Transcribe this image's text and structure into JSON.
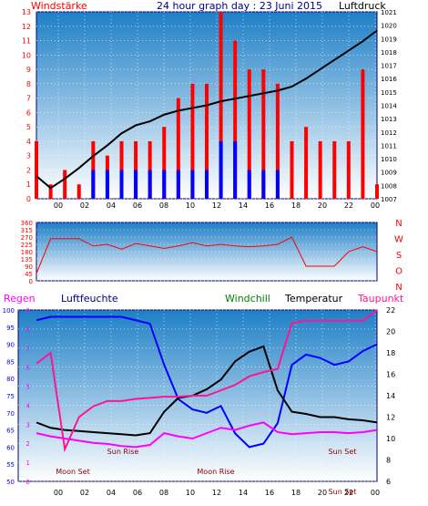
{
  "header": {
    "left_label": "Windstärke",
    "title": "24 hour graph day : 23 Juni 2015",
    "right_label": "Luftdruck"
  },
  "legend2": {
    "regen": "Regen",
    "luftfeuchte": "Luftfeuchte",
    "windchill": "Windchill",
    "temperatur": "Temperatur",
    "taupunkt": "Taupunkt"
  },
  "colors": {
    "red": "#ff0000",
    "blue": "#0000ff",
    "black": "#000000",
    "green": "#008000",
    "magenta": "#ff00ff",
    "hotpink": "#ff1493",
    "navy": "#000080"
  },
  "chart_data": [
    {
      "type": "bar",
      "title": "24 hour graph day : 23 Juni 2015",
      "ylabel_left": "Windstärke",
      "ylabel_right": "Luftdruck",
      "ylim_left": [
        0,
        13
      ],
      "ylim_right": [
        1007,
        1021
      ],
      "x_ticks": [
        "00",
        "02",
        "04",
        "06",
        "08",
        "10",
        "12",
        "14",
        "16",
        "18",
        "20",
        "22",
        "00"
      ],
      "y_ticks_left": [
        0,
        1,
        2,
        3,
        4,
        5,
        6,
        7,
        8,
        9,
        10,
        11,
        12,
        13
      ],
      "y_ticks_right": [
        1007,
        1008,
        1009,
        1010,
        1011,
        1012,
        1013,
        1014,
        1015,
        1016,
        1017,
        1018,
        1019,
        1020,
        1021
      ],
      "series": [
        {
          "type": "line",
          "color": "#000000",
          "axis": "right",
          "x": [
            0,
            1,
            2,
            3,
            4,
            5,
            6,
            7,
            8,
            9,
            10,
            11,
            12,
            13,
            14,
            15,
            16,
            17,
            18,
            19,
            20,
            21,
            22,
            23,
            24
          ],
          "y": [
            1008.7,
            1007.8,
            1008.5,
            1009.3,
            1010.2,
            1011.0,
            1011.9,
            1012.5,
            1012.8,
            1013.3,
            1013.6,
            1013.8,
            1014.0,
            1014.3,
            1014.5,
            1014.7,
            1014.9,
            1015.1,
            1015.4,
            1016.0,
            1016.7,
            1017.4,
            1018.1,
            1018.8,
            1019.6
          ]
        },
        {
          "type": "bar",
          "color": "#ff0000",
          "axis": "left",
          "x": [
            0,
            1,
            2,
            3,
            4,
            5,
            6,
            7,
            8,
            9,
            10,
            11,
            12,
            13,
            14,
            15,
            16,
            17,
            18,
            19,
            20,
            21,
            22,
            23,
            24
          ],
          "y": [
            4,
            1,
            2,
            1,
            4,
            3,
            4,
            4,
            4,
            5,
            7,
            8,
            8,
            13,
            11,
            9,
            9,
            8,
            4,
            5,
            4,
            4,
            4,
            9,
            1
          ]
        },
        {
          "type": "bar",
          "color": "#0000ff",
          "axis": "left",
          "x": [
            0,
            1,
            2,
            3,
            4,
            5,
            6,
            7,
            8,
            9,
            10,
            11,
            12,
            13,
            14,
            15,
            16,
            17,
            18,
            19,
            20,
            21,
            22,
            23,
            24
          ],
          "y": [
            0,
            0,
            0,
            0,
            2,
            2,
            2,
            2,
            2,
            2,
            2,
            2,
            2,
            4,
            4,
            2,
            2,
            2,
            0,
            0,
            0,
            0,
            0,
            0,
            0
          ]
        }
      ]
    },
    {
      "type": "line",
      "ylabel_right": [
        "N",
        "W",
        "S",
        "O",
        "N"
      ],
      "ylim": [
        0,
        360
      ],
      "y_ticks": [
        0,
        45,
        90,
        135,
        180,
        225,
        270,
        315,
        360
      ],
      "series": [
        {
          "color": "#ff0000",
          "x": [
            0,
            1,
            2,
            3,
            4,
            5,
            6,
            7,
            8,
            9,
            10,
            11,
            12,
            13,
            14,
            15,
            16,
            17,
            18,
            19,
            20,
            21,
            22,
            23,
            24
          ],
          "y": [
            45,
            260,
            260,
            260,
            215,
            225,
            195,
            230,
            215,
            200,
            215,
            235,
            215,
            225,
            215,
            210,
            215,
            225,
            270,
            90,
            90,
            90,
            180,
            210,
            180
          ]
        }
      ]
    },
    {
      "type": "line",
      "y_ticks_humidity": [
        50,
        55,
        60,
        65,
        70,
        75,
        80,
        85,
        90,
        95,
        100
      ],
      "y_ticks_rain": [
        0,
        1,
        2,
        3,
        4,
        5,
        6,
        7,
        8,
        9
      ],
      "y_ticks_temp": [
        6,
        8,
        10,
        12,
        14,
        16,
        18,
        20,
        22
      ],
      "x_ticks": [
        "00",
        "02",
        "04",
        "06",
        "08",
        "10",
        "12",
        "14",
        "16",
        "18",
        "20",
        "22",
        "00"
      ],
      "annotations": [
        "Moon Set",
        "Sun Rise",
        "Moon Rise",
        "Sun Set",
        "Sun Set"
      ],
      "series": [
        {
          "name": "Luftfeuchte",
          "color": "#0000ff",
          "x": [
            0,
            1,
            2,
            3,
            4,
            5,
            6,
            7,
            8,
            9,
            10,
            11,
            12,
            13,
            14,
            15,
            16,
            17,
            18,
            19,
            20,
            21,
            22,
            23,
            24
          ],
          "y": [
            97,
            98,
            98,
            98,
            98,
            98,
            98,
            97,
            96,
            84,
            74,
            71,
            70,
            72,
            64,
            60,
            61,
            67,
            84,
            87,
            86,
            84,
            85,
            88,
            90
          ]
        },
        {
          "name": "Temperatur",
          "color": "#000000",
          "x": [
            0,
            1,
            2,
            3,
            4,
            5,
            6,
            7,
            8,
            9,
            10,
            11,
            12,
            13,
            14,
            15,
            16,
            17,
            18,
            19,
            20,
            21,
            22,
            23,
            24
          ],
          "y": [
            11.5,
            11,
            10.8,
            10.7,
            10.6,
            10.5,
            10.4,
            10.3,
            10.5,
            12.5,
            13.8,
            14.0,
            14.6,
            15.5,
            17.2,
            18.1,
            18.6,
            14.5,
            12.5,
            12.3,
            12.0,
            12.0,
            11.8,
            11.7,
            11.5
          ]
        },
        {
          "name": "Windchill",
          "color": "#ff00ff",
          "x": [
            0,
            1,
            2,
            3,
            4,
            5,
            6,
            7,
            8,
            9,
            10,
            11,
            12,
            13,
            14,
            15,
            16,
            17,
            18,
            19,
            20,
            21,
            22,
            23,
            24
          ],
          "y": [
            10.5,
            10.2,
            10.0,
            9.8,
            9.6,
            9.5,
            9.3,
            9.2,
            9.4,
            10.5,
            10.2,
            10.0,
            10.5,
            11.0,
            10.8,
            11.2,
            11.5,
            10.6,
            10.4,
            10.5,
            10.6,
            10.6,
            10.5,
            10.6,
            10.8
          ]
        },
        {
          "name": "Taupunkt",
          "color": "#ff1493",
          "x": [
            0,
            1,
            2,
            3,
            4,
            5,
            6,
            7,
            8,
            9,
            10,
            11,
            12,
            13,
            14,
            15,
            16,
            17,
            18,
            19,
            20,
            21,
            22,
            23,
            24
          ],
          "y": [
            17,
            18,
            9,
            12,
            13,
            13.5,
            13.5,
            13.7,
            13.8,
            13.9,
            13.9,
            14.0,
            14.0,
            14.5,
            15,
            15.8,
            16.2,
            16.5,
            20.8,
            21,
            21,
            21,
            21,
            21,
            22
          ]
        }
      ]
    }
  ]
}
